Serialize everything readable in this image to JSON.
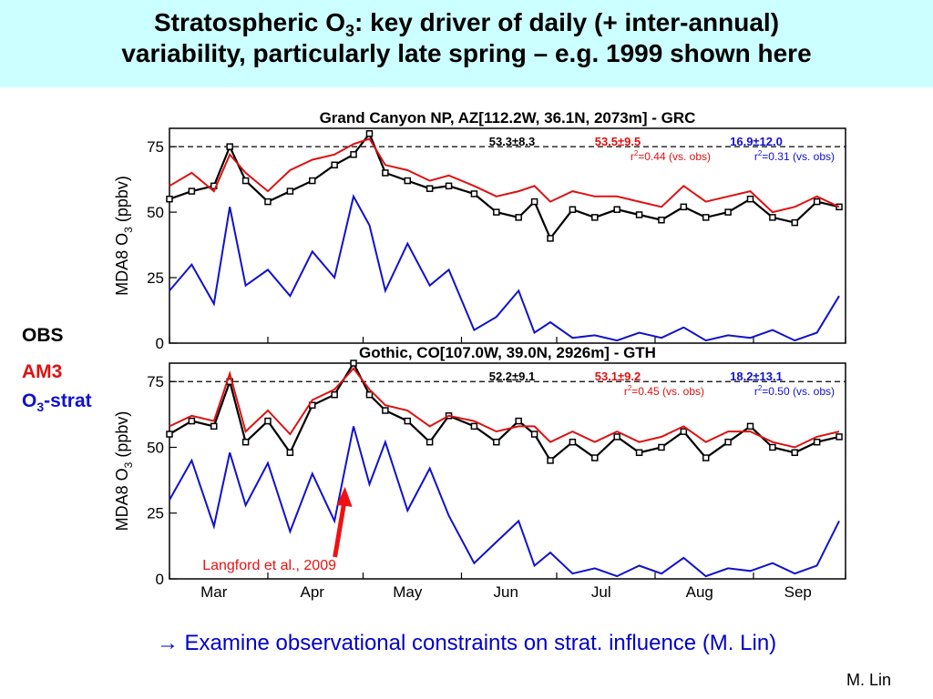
{
  "slide": {
    "title_line1_a": "Stratospheric O",
    "title_line1_sub": "3",
    "title_line1_b": ": key driver of daily (+ inter-annual)",
    "title_line2": "variability, particularly late spring – e.g. 1999 shown here",
    "legend_obs": "OBS",
    "legend_am3": "AM3",
    "legend_strat_a": "O",
    "legend_strat_sub": "3",
    "legend_strat_b": "-strat",
    "footer_arrow": "→",
    "footer_text": "Examine observational constraints on strat. influence (M. Lin)",
    "author": "M. Lin"
  },
  "colors": {
    "title_bg": "#ccffff",
    "obs": "#000000",
    "am3": "#dd1111",
    "strat": "#1111cc",
    "arrow": "#ee1111",
    "footer": "#0000cc"
  },
  "chart_data": [
    {
      "type": "line",
      "title": "Grand Canyon NP, AZ[112.2W, 36.1N, 2073m] - GRC",
      "ylabel_a": "MDA8 O",
      "ylabel_sub": "3",
      "ylabel_b": " (ppbv)",
      "ylim": [
        0,
        82
      ],
      "yticks": [
        "0",
        "25",
        "50",
        "75"
      ],
      "reference_line": 75,
      "stats": {
        "obs": "53.3±8.3",
        "am3": "53.5±9.5",
        "strat": "16.9±12.0"
      },
      "r2": {
        "am3": {
          "pre": "r",
          "sup": "2",
          "post": "=0.44 (vs. obs)"
        },
        "strat": {
          "pre": "r",
          "sup": "2",
          "post": "=0.31 (vs. obs)"
        }
      },
      "x_range": [
        "1999-03-01",
        "1999-09-30"
      ],
      "series": [
        {
          "key": "obs",
          "x": [
            "1999-03-01",
            "1999-03-08",
            "1999-03-15",
            "1999-03-20",
            "1999-03-25",
            "1999-04-01",
            "1999-04-08",
            "1999-04-15",
            "1999-04-22",
            "1999-04-28",
            "1999-05-03",
            "1999-05-08",
            "1999-05-15",
            "1999-05-22",
            "1999-05-28",
            "1999-06-05",
            "1999-06-12",
            "1999-06-19",
            "1999-06-24",
            "1999-06-29",
            "1999-07-06",
            "1999-07-13",
            "1999-07-20",
            "1999-07-27",
            "1999-08-03",
            "1999-08-10",
            "1999-08-17",
            "1999-08-24",
            "1999-08-31",
            "1999-09-07",
            "1999-09-14",
            "1999-09-21",
            "1999-09-28"
          ],
          "values": [
            55,
            58,
            60,
            75,
            62,
            54,
            58,
            62,
            68,
            72,
            80,
            65,
            62,
            59,
            60,
            57,
            50,
            48,
            54,
            40,
            51,
            48,
            51,
            49,
            47,
            52,
            48,
            50,
            55,
            48,
            46,
            54,
            52
          ]
        },
        {
          "key": "am3",
          "x": [
            "1999-03-01",
            "1999-03-08",
            "1999-03-15",
            "1999-03-20",
            "1999-03-25",
            "1999-04-01",
            "1999-04-08",
            "1999-04-15",
            "1999-04-22",
            "1999-04-28",
            "1999-05-03",
            "1999-05-08",
            "1999-05-15",
            "1999-05-22",
            "1999-05-28",
            "1999-06-05",
            "1999-06-12",
            "1999-06-19",
            "1999-06-24",
            "1999-06-29",
            "1999-07-06",
            "1999-07-13",
            "1999-07-20",
            "1999-07-27",
            "1999-08-03",
            "1999-08-10",
            "1999-08-17",
            "1999-08-24",
            "1999-08-31",
            "1999-09-07",
            "1999-09-14",
            "1999-09-21",
            "1999-09-28"
          ],
          "values": [
            60,
            65,
            58,
            72,
            65,
            58,
            66,
            70,
            72,
            76,
            78,
            68,
            66,
            62,
            64,
            60,
            56,
            58,
            60,
            54,
            58,
            56,
            56,
            54,
            52,
            60,
            54,
            56,
            58,
            50,
            52,
            56,
            52
          ]
        },
        {
          "key": "strat",
          "x": [
            "1999-03-01",
            "1999-03-08",
            "1999-03-15",
            "1999-03-20",
            "1999-03-25",
            "1999-04-01",
            "1999-04-08",
            "1999-04-15",
            "1999-04-22",
            "1999-04-28",
            "1999-05-03",
            "1999-05-08",
            "1999-05-15",
            "1999-05-22",
            "1999-05-28",
            "1999-06-05",
            "1999-06-12",
            "1999-06-19",
            "1999-06-24",
            "1999-06-29",
            "1999-07-06",
            "1999-07-13",
            "1999-07-20",
            "1999-07-27",
            "1999-08-03",
            "1999-08-10",
            "1999-08-17",
            "1999-08-24",
            "1999-08-31",
            "1999-09-07",
            "1999-09-14",
            "1999-09-21",
            "1999-09-28"
          ],
          "values": [
            20,
            30,
            15,
            52,
            22,
            28,
            18,
            35,
            25,
            56,
            45,
            20,
            38,
            22,
            28,
            5,
            10,
            20,
            4,
            8,
            2,
            3,
            1,
            4,
            2,
            6,
            1,
            3,
            2,
            5,
            1,
            4,
            18
          ]
        }
      ]
    },
    {
      "type": "line",
      "title": "Gothic, CO[107.0W, 39.0N, 2926m] - GTH",
      "ylabel_a": "MDA8 O",
      "ylabel_sub": "3",
      "ylabel_b": " (ppbv)",
      "ylim": [
        0,
        82
      ],
      "yticks": [
        "0",
        "25",
        "50",
        "75"
      ],
      "reference_line": 75,
      "stats": {
        "obs": "52.2±9.1",
        "am3": "53.1±9.2",
        "strat": "18.2±13.1"
      },
      "r2": {
        "am3": {
          "pre": "r",
          "sup": "2",
          "post": "=0.45 (vs. obs)"
        },
        "strat": {
          "pre": "r",
          "sup": "2",
          "post": "=0.50 (vs. obs)"
        }
      },
      "x_range": [
        "1999-03-01",
        "1999-09-30"
      ],
      "xticks": [
        {
          "date": "1999-03-15",
          "label": "Mar"
        },
        {
          "date": "1999-04-15",
          "label": "Apr"
        },
        {
          "date": "1999-05-15",
          "label": "May"
        },
        {
          "date": "1999-06-15",
          "label": "Jun"
        },
        {
          "date": "1999-07-15",
          "label": "Jul"
        },
        {
          "date": "1999-08-15",
          "label": "Aug"
        },
        {
          "date": "1999-09-15",
          "label": "Sep"
        }
      ],
      "annotation": {
        "text": "Langford et al., 2009",
        "date": "1999-04-25",
        "value": 35
      },
      "series": [
        {
          "key": "obs",
          "x": [
            "1999-03-01",
            "1999-03-08",
            "1999-03-15",
            "1999-03-20",
            "1999-03-25",
            "1999-04-01",
            "1999-04-08",
            "1999-04-15",
            "1999-04-22",
            "1999-04-28",
            "1999-05-03",
            "1999-05-08",
            "1999-05-15",
            "1999-05-22",
            "1999-05-28",
            "1999-06-05",
            "1999-06-12",
            "1999-06-19",
            "1999-06-24",
            "1999-06-29",
            "1999-07-06",
            "1999-07-13",
            "1999-07-20",
            "1999-07-27",
            "1999-08-03",
            "1999-08-10",
            "1999-08-17",
            "1999-08-24",
            "1999-08-31",
            "1999-09-07",
            "1999-09-14",
            "1999-09-21",
            "1999-09-28"
          ],
          "values": [
            55,
            60,
            58,
            75,
            52,
            60,
            48,
            66,
            70,
            82,
            70,
            64,
            60,
            52,
            62,
            58,
            52,
            60,
            55,
            45,
            52,
            46,
            54,
            48,
            50,
            56,
            46,
            52,
            58,
            50,
            48,
            52,
            54
          ]
        },
        {
          "key": "am3",
          "x": [
            "1999-03-01",
            "1999-03-08",
            "1999-03-15",
            "1999-03-20",
            "1999-03-25",
            "1999-04-01",
            "1999-04-08",
            "1999-04-15",
            "1999-04-22",
            "1999-04-28",
            "1999-05-03",
            "1999-05-08",
            "1999-05-15",
            "1999-05-22",
            "1999-05-28",
            "1999-06-05",
            "1999-06-12",
            "1999-06-19",
            "1999-06-24",
            "1999-06-29",
            "1999-07-06",
            "1999-07-13",
            "1999-07-20",
            "1999-07-27",
            "1999-08-03",
            "1999-08-10",
            "1999-08-17",
            "1999-08-24",
            "1999-08-31",
            "1999-09-07",
            "1999-09-14",
            "1999-09-21",
            "1999-09-28"
          ],
          "values": [
            58,
            62,
            60,
            78,
            56,
            64,
            55,
            68,
            72,
            80,
            72,
            66,
            64,
            58,
            62,
            60,
            56,
            58,
            58,
            52,
            56,
            52,
            56,
            52,
            54,
            58,
            52,
            56,
            56,
            52,
            50,
            54,
            56
          ]
        },
        {
          "key": "strat",
          "x": [
            "1999-03-01",
            "1999-03-08",
            "1999-03-15",
            "1999-03-20",
            "1999-03-25",
            "1999-04-01",
            "1999-04-08",
            "1999-04-15",
            "1999-04-22",
            "1999-04-28",
            "1999-05-03",
            "1999-05-08",
            "1999-05-15",
            "1999-05-22",
            "1999-05-28",
            "1999-06-05",
            "1999-06-12",
            "1999-06-19",
            "1999-06-24",
            "1999-06-29",
            "1999-07-06",
            "1999-07-13",
            "1999-07-20",
            "1999-07-27",
            "1999-08-03",
            "1999-08-10",
            "1999-08-17",
            "1999-08-24",
            "1999-08-31",
            "1999-09-07",
            "1999-09-14",
            "1999-09-21",
            "1999-09-28"
          ],
          "values": [
            30,
            45,
            20,
            48,
            28,
            44,
            18,
            40,
            22,
            58,
            36,
            52,
            26,
            42,
            24,
            6,
            14,
            22,
            5,
            10,
            2,
            4,
            1,
            5,
            2,
            8,
            1,
            4,
            3,
            6,
            2,
            5,
            22
          ]
        }
      ]
    }
  ]
}
